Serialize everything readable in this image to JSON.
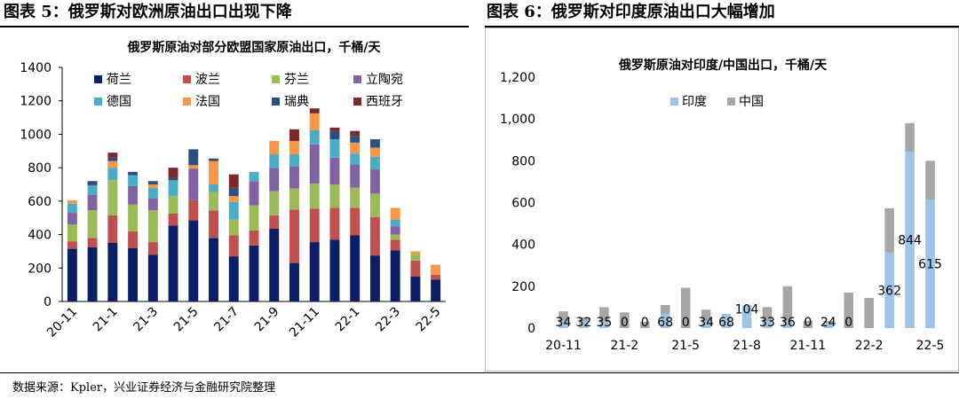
{
  "figure_left": {
    "caption": "图表 5：俄罗斯对欧洲原油出口出现下降"
  },
  "figure_right": {
    "caption": "图表 6：俄罗斯对印度原油出口大幅增加"
  },
  "footer": {
    "source": "数据来源：Kpler，兴业证券经济与金融研究院整理"
  },
  "colors": {
    "荷兰": "#0b1f66",
    "波兰": "#c0504d",
    "芬兰": "#9bbb59",
    "立陶宛": "#8064a2",
    "德国": "#4bacc6",
    "法国": "#f79646",
    "瑞典": "#2e4e7e",
    "西班牙": "#7b2a2a",
    "印度": "#9dc3e6",
    "中国": "#a6a6a6"
  },
  "chart_data": [
    {
      "type": "bar",
      "stacked": true,
      "title": "俄罗斯原油对部分欧盟国家原油出口，千桶/天",
      "xlabel": "",
      "ylabel": "",
      "ylim": [
        0,
        1400
      ],
      "yticks": [
        "0",
        "200",
        "400",
        "600",
        "800",
        "1000",
        "1200",
        "1400"
      ],
      "categories": [
        "20-11",
        "20-12",
        "21-1",
        "21-2",
        "21-3",
        "21-4",
        "21-5",
        "21-6",
        "21-7",
        "21-8",
        "21-9",
        "21-10",
        "21-11",
        "21-12",
        "22-1",
        "22-2",
        "22-3",
        "22-4",
        "22-5"
      ],
      "tick_labels": [
        "20-11",
        "21-1",
        "21-3",
        "21-5",
        "21-7",
        "21-9",
        "21-11",
        "22-1",
        "22-3",
        "22-5"
      ],
      "series": [
        {
          "name": "荷兰",
          "values": [
            315,
            325,
            350,
            320,
            280,
            455,
            485,
            380,
            270,
            335,
            435,
            230,
            355,
            370,
            395,
            275,
            305,
            150,
            130
          ]
        },
        {
          "name": "波兰",
          "values": [
            45,
            55,
            165,
            100,
            75,
            70,
            120,
            165,
            125,
            90,
            80,
            320,
            200,
            190,
            165,
            230,
            65,
            95,
            30
          ]
        },
        {
          "name": "芬兰",
          "values": [
            100,
            165,
            210,
            160,
            190,
            105,
            0,
            110,
            95,
            150,
            145,
            125,
            150,
            140,
            120,
            140,
            30,
            40,
            0
          ]
        },
        {
          "name": "立陶宛",
          "values": [
            70,
            95,
            0,
            110,
            70,
            0,
            190,
            0,
            0,
            145,
            140,
            135,
            235,
            160,
            140,
            145,
            50,
            0,
            0
          ]
        },
        {
          "name": "德国",
          "values": [
            55,
            55,
            75,
            65,
            65,
            95,
            0,
            45,
            105,
            55,
            80,
            70,
            85,
            110,
            65,
            75,
            40,
            0,
            0
          ]
        },
        {
          "name": "法国",
          "values": [
            20,
            0,
            40,
            0,
            20,
            0,
            20,
            140,
            35,
            0,
            80,
            80,
            100,
            0,
            65,
            55,
            70,
            15,
            60
          ]
        },
        {
          "name": "瑞典",
          "values": [
            0,
            25,
            20,
            20,
            20,
            15,
            95,
            15,
            50,
            0,
            0,
            0,
            0,
            50,
            40,
            50,
            0,
            0,
            0
          ]
        },
        {
          "name": "西班牙",
          "values": [
            0,
            0,
            30,
            0,
            0,
            60,
            0,
            0,
            80,
            0,
            0,
            70,
            30,
            20,
            30,
            0,
            0,
            0,
            0
          ]
        }
      ]
    },
    {
      "type": "bar",
      "stacked": true,
      "title": "俄罗斯原油对印度/中国出口，千桶/天",
      "xlabel": "",
      "ylabel": "",
      "ylim": [
        0,
        1200
      ],
      "yticks": [
        "0",
        "200",
        "400",
        "600",
        "800",
        "1,000",
        "1,200"
      ],
      "categories": [
        "20-11",
        "20-12",
        "21-1",
        "21-2",
        "21-3",
        "21-4",
        "21-5",
        "21-6",
        "21-7",
        "21-8",
        "21-9",
        "21-10",
        "21-11",
        "21-12",
        "22-1",
        "22-2",
        "22-3",
        "22-4",
        "22-5"
      ],
      "tick_labels": [
        "20-11",
        "21-2",
        "21-5",
        "21-8",
        "21-11",
        "22-2",
        "22-5"
      ],
      "series": [
        {
          "name": "印度",
          "values": [
            34,
            32,
            35,
            0,
            0,
            68,
            0,
            34,
            68,
            104,
            33,
            36,
            0,
            24,
            0,
            0,
            362,
            844,
            615
          ]
        },
        {
          "name": "中国",
          "values": [
            46,
            18,
            65,
            75,
            30,
            42,
            193,
            54,
            0,
            4,
            67,
            164,
            35,
            10,
            170,
            144,
            211,
            136,
            185
          ]
        }
      ],
      "data_labels": {
        "series": "印度",
        "values": [
          "34",
          "32",
          "35",
          "0",
          "0",
          "68",
          "0",
          "34",
          "68",
          "104",
          "33",
          "36",
          "0",
          "24",
          "0",
          "",
          "362",
          "844",
          "615"
        ]
      }
    }
  ]
}
